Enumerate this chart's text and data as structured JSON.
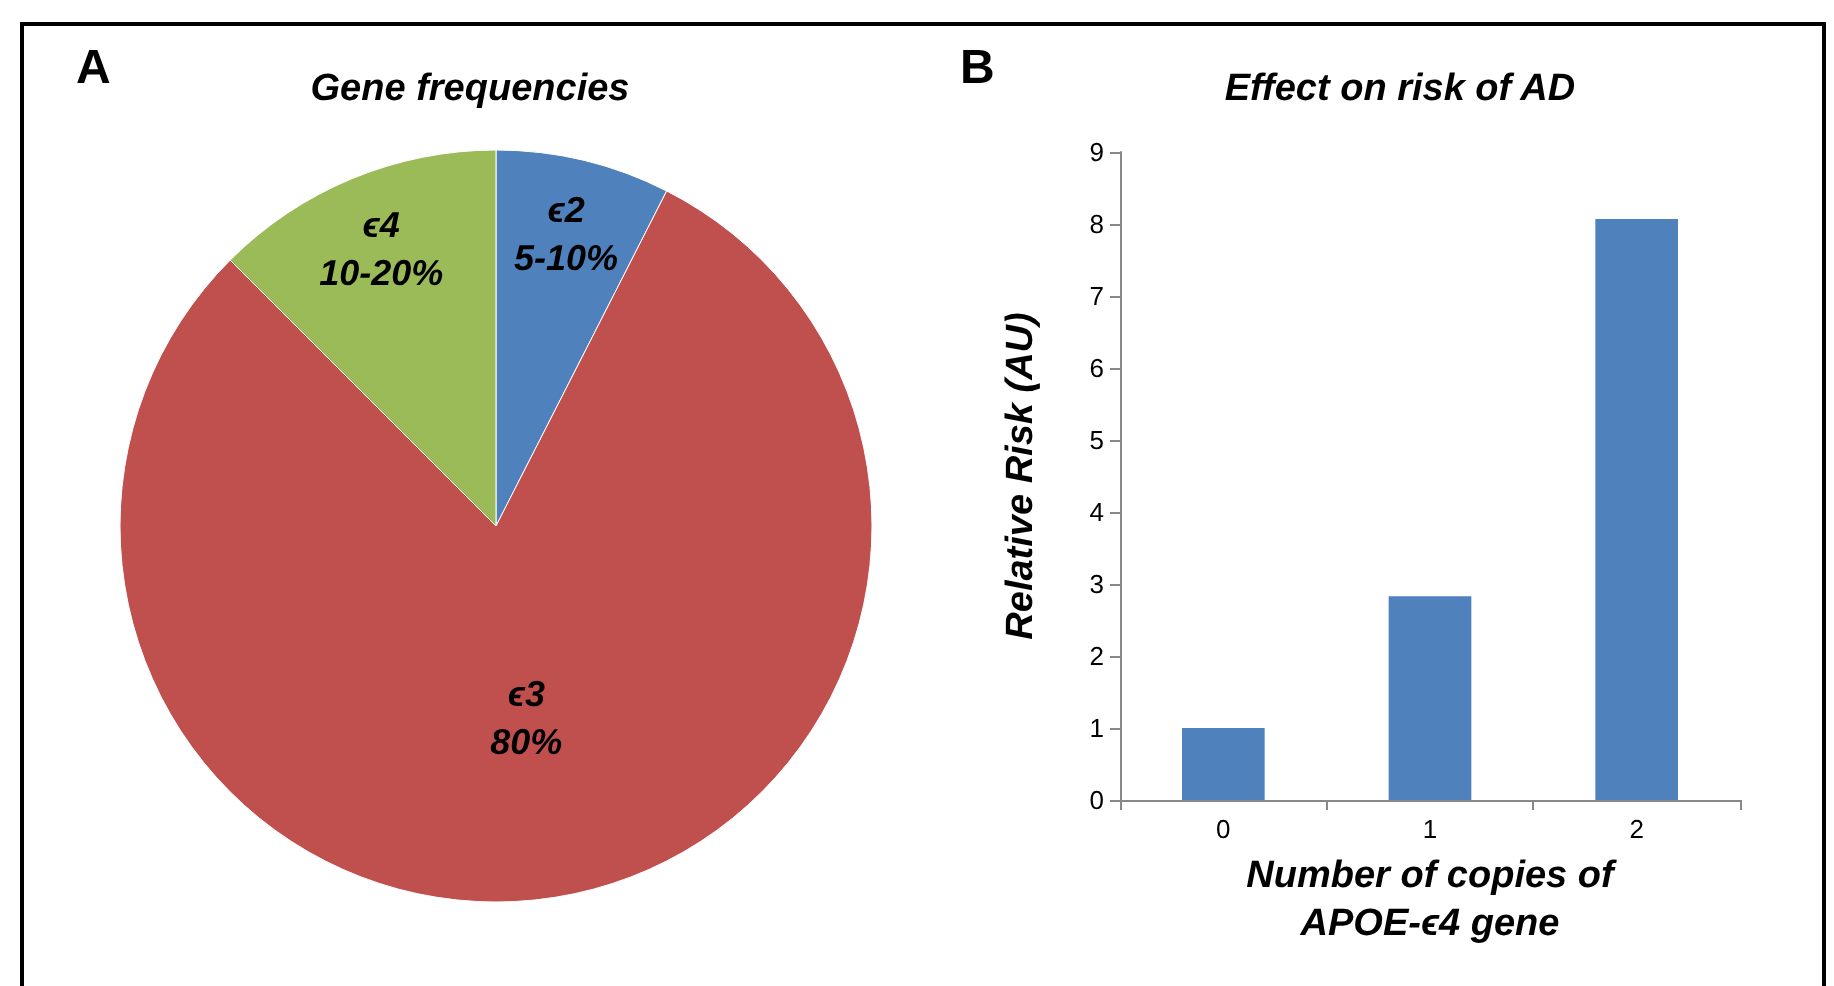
{
  "chart_data": [
    {
      "type": "pie",
      "title": "Gene frequencies",
      "annotations": [
        "A"
      ],
      "categories": [
        "ϵ2\n5-10%",
        "ϵ3\n80%",
        "ϵ4\n10-20%"
      ],
      "values": [
        7.5,
        80,
        12.5
      ],
      "colors": [
        "#4f81bd",
        "#c0504d",
        "#9bbb59"
      ],
      "legend": false
    },
    {
      "type": "bar",
      "title": "Effect on risk of AD",
      "annotations": [
        "B"
      ],
      "xlabel": "Number of copies of\nAPOE-ϵ4 gene",
      "ylabel": "Relative Risk (AU)",
      "categories": [
        "0",
        "1",
        "2"
      ],
      "values": [
        1.0,
        2.83,
        8.07
      ],
      "color": "#4f81bd",
      "ylim": [
        0,
        9
      ],
      "yticks": [
        0,
        1,
        2,
        3,
        4,
        5,
        6,
        7,
        8,
        9
      ],
      "grid": false,
      "legend": false
    }
  ]
}
